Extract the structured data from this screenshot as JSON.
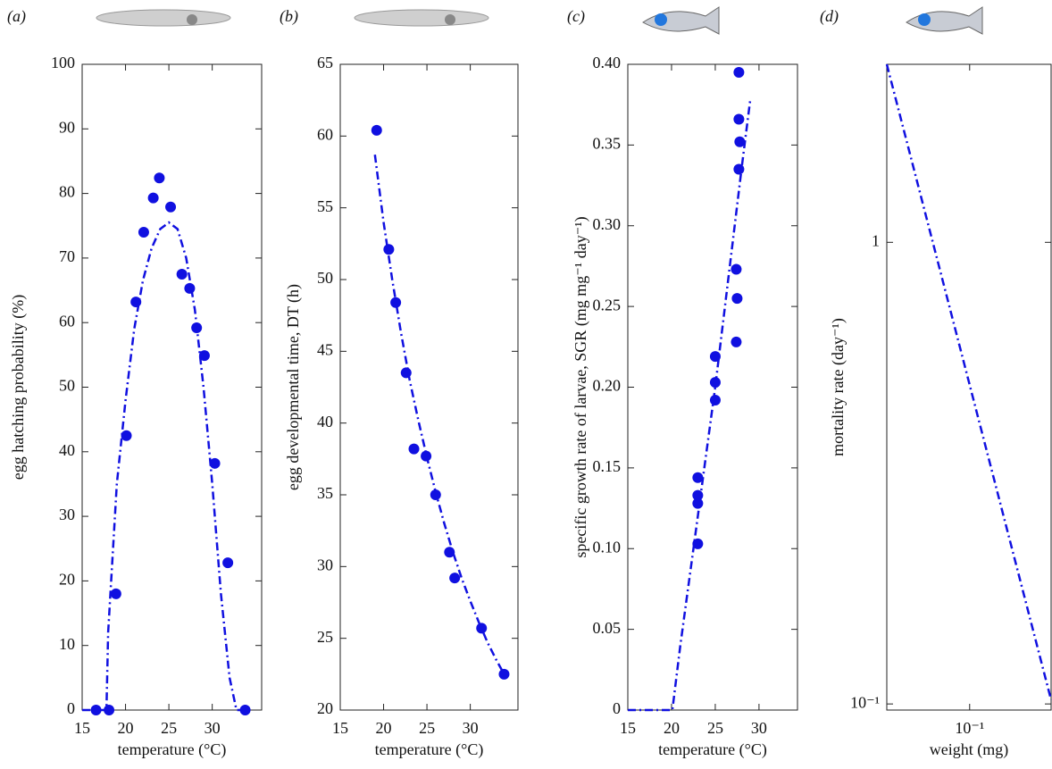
{
  "chart_data": [
    {
      "type": "scatter",
      "panel": "(a)",
      "xlabel": "temperature (°C)",
      "ylabel": "egg hatching probability (%)",
      "xlim": [
        15,
        35.7
      ],
      "xticks": [
        15,
        20,
        25,
        30
      ],
      "ylim": [
        0,
        100
      ],
      "yticks": [
        0,
        10,
        20,
        30,
        40,
        50,
        60,
        70,
        80,
        90,
        100
      ],
      "series": [
        {
          "mode": "markers",
          "color": "#1010e0",
          "x": [
            16.6,
            18.1,
            18.9,
            20.1,
            21.2,
            22.1,
            23.2,
            23.9,
            25.2,
            26.5,
            27.4,
            28.2,
            29.1,
            30.3,
            31.8,
            33.8
          ],
          "values": [
            0,
            0,
            18,
            42.5,
            63.2,
            74,
            79.3,
            82.4,
            77.9,
            67.5,
            65.3,
            59.2,
            54.9,
            38.2,
            22.8,
            0
          ]
        },
        {
          "mode": "line",
          "dash": "dashdot",
          "color": "#1010e0",
          "x": [
            15,
            17.8,
            18,
            19,
            20,
            21,
            22,
            23,
            24,
            25,
            26,
            27,
            28,
            29,
            30,
            31,
            32,
            32.8,
            33.5
          ],
          "values": [
            0,
            0,
            12,
            35,
            48,
            59,
            66.5,
            71.5,
            74.5,
            75.5,
            74.5,
            70,
            62,
            50,
            35,
            18,
            5,
            0,
            0
          ]
        }
      ]
    },
    {
      "type": "scatter",
      "panel": "(b)",
      "xlabel": "temperature (°C)",
      "ylabel": "egg developmental time, DT (h)",
      "xlim": [
        15,
        35.5
      ],
      "xticks": [
        15,
        20,
        25,
        30
      ],
      "ylim": [
        20,
        65
      ],
      "yticks": [
        20,
        25,
        30,
        35,
        40,
        45,
        50,
        55,
        60,
        65
      ],
      "series": [
        {
          "mode": "markers",
          "color": "#1010e0",
          "x": [
            19.2,
            20.6,
            21.4,
            22.6,
            23.5,
            24.9,
            26.0,
            27.6,
            28.2,
            31.3,
            33.9
          ],
          "values": [
            60.4,
            52.1,
            48.4,
            43.5,
            38.2,
            37.7,
            35,
            31,
            29.2,
            25.7,
            22.5
          ]
        },
        {
          "mode": "line",
          "dash": "dashdot",
          "color": "#1010e0",
          "x": [
            19,
            20,
            21,
            22,
            23,
            24,
            25,
            26,
            27,
            28,
            29,
            30,
            31,
            32,
            33,
            34
          ],
          "values": [
            58.7,
            54,
            50,
            46.3,
            43,
            40.2,
            37.6,
            35.2,
            33,
            31,
            29.2,
            27.6,
            26.1,
            24.7,
            23.5,
            22.4
          ]
        }
      ]
    },
    {
      "type": "scatter",
      "panel": "(c)",
      "xlabel": "temperature (°C)",
      "ylabel": "specific growth rate of larvae, SGR (mg mg⁻¹ day⁻¹)",
      "xlim": [
        15,
        34.4
      ],
      "xticks": [
        15,
        20,
        25,
        30
      ],
      "ylim": [
        0,
        0.4
      ],
      "yticks": [
        0,
        0.05,
        {
          "value": 0.1,
          "label": "0.10"
        },
        0.15,
        {
          "value": 0.2,
          "label": "0.20"
        },
        0.25,
        {
          "value": 0.3,
          "label": "0.30"
        },
        0.35,
        {
          "value": 0.4,
          "label": "0.40"
        }
      ],
      "series": [
        {
          "mode": "markers",
          "color": "#1010e0",
          "x": [
            23.0,
            23.0,
            23.0,
            23.0,
            25.0,
            25.0,
            25.0,
            27.7,
            27.7,
            27.8,
            27.7,
            27.4,
            27.5,
            27.4
          ],
          "values": [
            0.144,
            0.133,
            0.128,
            0.103,
            0.219,
            0.203,
            0.192,
            0.395,
            0.366,
            0.352,
            0.335,
            0.273,
            0.255,
            0.228
          ]
        },
        {
          "mode": "line",
          "dash": "dashdot",
          "color": "#1010e0",
          "x": [
            15,
            20.1,
            21,
            22,
            23,
            24,
            25,
            26,
            27,
            28,
            29
          ],
          "values": [
            0,
            0,
            0.04,
            0.08,
            0.12,
            0.16,
            0.2,
            0.245,
            0.29,
            0.335,
            0.378
          ]
        }
      ]
    },
    {
      "type": "scatter",
      "panel": "(d)",
      "xlabel": "weight (mg)",
      "ylabel": "mortality rate (day⁻¹)",
      "xscale": "log",
      "yscale": "log",
      "xlim": [
        0.062,
        0.16
      ],
      "xticks": [
        {
          "value": 0.1,
          "label": "10⁻¹"
        }
      ],
      "ylim": [
        0.097,
        2.43
      ],
      "yticks": [
        {
          "value": 0.1,
          "label": "10⁻¹"
        },
        1
      ],
      "series": [
        {
          "mode": "line",
          "dash": "dashdot",
          "color": "#1010e0",
          "x": [
            0.062,
            0.16
          ],
          "values": [
            2.43,
            0.102
          ]
        }
      ]
    }
  ]
}
